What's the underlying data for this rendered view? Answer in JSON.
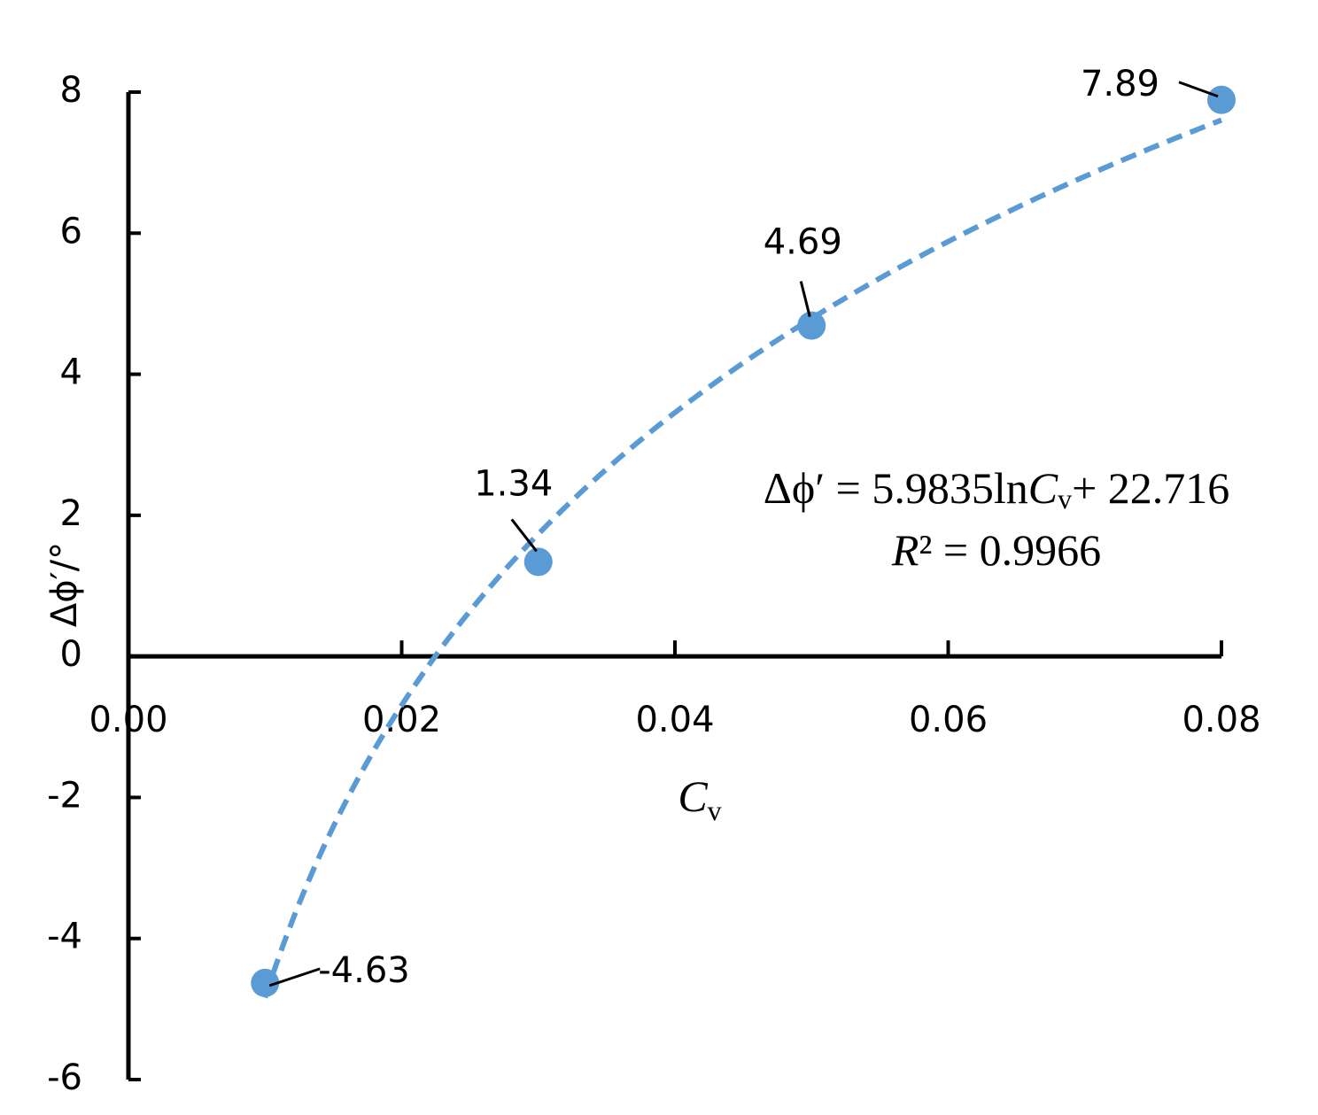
{
  "chart_data": {
    "type": "scatter",
    "xlabel": [
      "C",
      "v"
    ],
    "ylabel": "Δϕ′/°",
    "x": [
      0.01,
      0.03,
      0.05,
      0.08
    ],
    "series": [
      {
        "color": "#5b9bd5",
        "values": [
          -4.63,
          1.34,
          4.69,
          7.89
        ]
      }
    ],
    "xlim": [
      0,
      0.08
    ],
    "xticks": [
      {
        "value": 0,
        "label": "0.00"
      },
      0.02,
      0.04,
      0.06,
      0.08
    ],
    "ylim": [
      -6,
      8
    ],
    "yticks": [
      -6,
      -4,
      -2,
      0,
      2,
      4,
      6,
      8
    ],
    "trendline": {
      "type": "logarithmic",
      "coefficients": [
        5.9835,
        22.716
      ],
      "equation": [
        "Δϕ′ = 5.9835ln",
        "C",
        "v",
        "+ 22.716"
      ],
      "r_squared": [
        "R",
        "² = 0.9966"
      ]
    }
  }
}
